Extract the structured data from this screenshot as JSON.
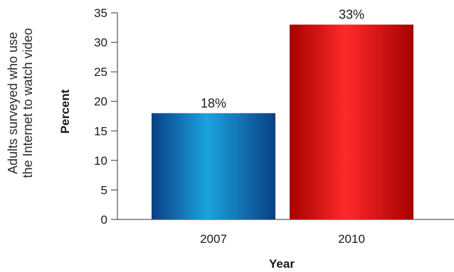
{
  "chart_data": {
    "type": "bar",
    "categories": [
      "2007",
      "2010"
    ],
    "values": [
      18,
      33
    ],
    "value_labels": [
      "18%",
      "33%"
    ],
    "xlabel": "Year",
    "ylabel": "Percent",
    "side_title_lines": [
      "Adults surveyed who use",
      "the Internet to watch video"
    ],
    "ylim": [
      0,
      35
    ],
    "yticks": [
      0,
      5,
      10,
      15,
      20,
      25,
      30,
      35
    ],
    "grid": false,
    "bar_styles": [
      {
        "light": "#1ba3df",
        "dark": "#0a3f86"
      },
      {
        "light": "#ff2a2a",
        "dark": "#a50000"
      }
    ]
  }
}
